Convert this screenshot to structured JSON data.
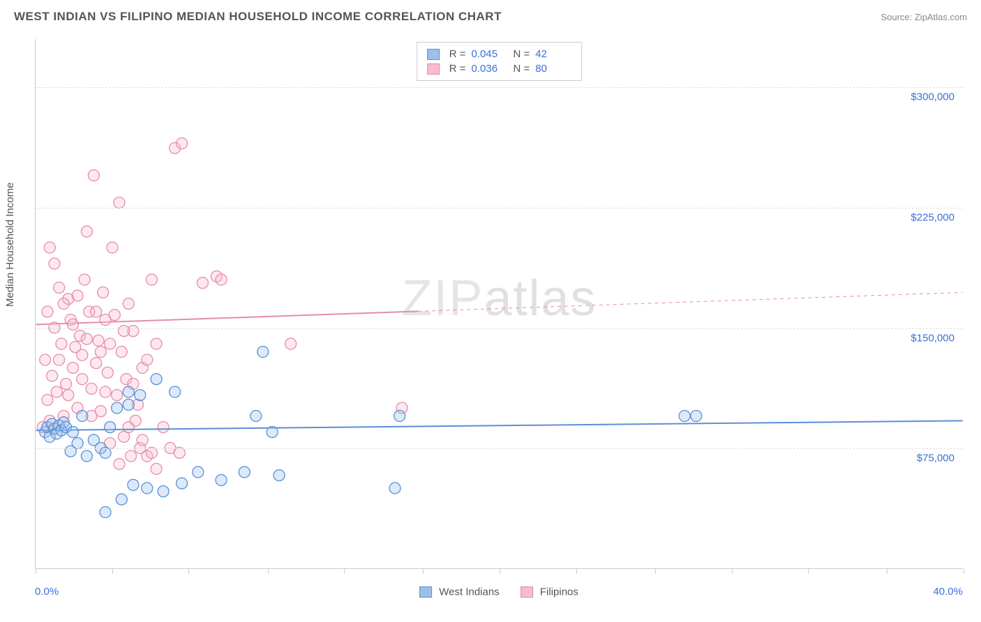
{
  "title": "WEST INDIAN VS FILIPINO MEDIAN HOUSEHOLD INCOME CORRELATION CHART",
  "source": "Source: ZipAtlas.com",
  "watermark_bold": "ZIP",
  "watermark_light": "atlas",
  "ylabel": "Median Household Income",
  "chart": {
    "type": "scatter",
    "xlim": [
      0,
      40
    ],
    "ylim": [
      0,
      330000
    ],
    "xticks_pct": [
      0,
      3.3,
      6.6,
      10,
      13.3,
      16.7,
      20,
      23.3,
      26.7,
      30,
      33.3,
      36.7,
      40
    ],
    "yticks": [
      {
        "value": 75000,
        "label": "$75,000"
      },
      {
        "value": 150000,
        "label": "$150,000"
      },
      {
        "value": 225000,
        "label": "$225,000"
      },
      {
        "value": 300000,
        "label": "$300,000"
      }
    ],
    "xlabel_min": "0.0%",
    "xlabel_max": "40.0%",
    "grid_color": "#e0e0e0",
    "axis_color": "#cccccc",
    "tick_label_color": "#3b6fd6",
    "background_color": "#ffffff",
    "marker_radius": 8,
    "marker_fill_opacity": 0.35,
    "marker_stroke_width": 1.3,
    "trend_line_width": 2
  },
  "series": {
    "west_indians": {
      "label": "West Indians",
      "color_stroke": "#5a8fd8",
      "color_fill": "#9cc0ea",
      "R": "0.045",
      "N": "42",
      "trend": {
        "y_at_x0": 86000,
        "y_at_x40": 92000
      },
      "points": [
        [
          0.4,
          85000
        ],
        [
          0.5,
          88000
        ],
        [
          0.6,
          82000
        ],
        [
          0.7,
          90000
        ],
        [
          0.8,
          87000
        ],
        [
          0.9,
          84000
        ],
        [
          1.0,
          89000
        ],
        [
          1.1,
          86000
        ],
        [
          1.2,
          91000
        ],
        [
          1.3,
          88000
        ],
        [
          1.5,
          73000
        ],
        [
          1.6,
          85000
        ],
        [
          1.8,
          78000
        ],
        [
          2.0,
          95000
        ],
        [
          2.2,
          70000
        ],
        [
          2.5,
          80000
        ],
        [
          2.8,
          75000
        ],
        [
          3.0,
          72000
        ],
        [
          3.2,
          88000
        ],
        [
          3.5,
          100000
        ],
        [
          3.7,
          43000
        ],
        [
          4.0,
          110000
        ],
        [
          4.2,
          52000
        ],
        [
          4.5,
          108000
        ],
        [
          4.8,
          50000
        ],
        [
          5.2,
          118000
        ],
        [
          5.5,
          48000
        ],
        [
          6.0,
          110000
        ],
        [
          6.3,
          53000
        ],
        [
          7.0,
          60000
        ],
        [
          8.0,
          55000
        ],
        [
          9.0,
          60000
        ],
        [
          9.5,
          95000
        ],
        [
          9.8,
          135000
        ],
        [
          10.2,
          85000
        ],
        [
          10.5,
          58000
        ],
        [
          15.5,
          50000
        ],
        [
          15.7,
          95000
        ],
        [
          28.0,
          95000
        ],
        [
          28.5,
          95000
        ],
        [
          3.0,
          35000
        ],
        [
          4.0,
          102000
        ]
      ]
    },
    "filipinos": {
      "label": "Filipinos",
      "color_stroke": "#e78ca8",
      "color_fill": "#f5bcce",
      "R": "0.036",
      "N": "80",
      "trend": {
        "y_at_x0": 152000,
        "y_at_x40": 172000
      },
      "points": [
        [
          0.3,
          88000
        ],
        [
          0.4,
          130000
        ],
        [
          0.5,
          160000
        ],
        [
          0.6,
          200000
        ],
        [
          0.7,
          120000
        ],
        [
          0.8,
          150000
        ],
        [
          0.9,
          110000
        ],
        [
          1.0,
          175000
        ],
        [
          1.1,
          140000
        ],
        [
          1.2,
          95000
        ],
        [
          1.3,
          115000
        ],
        [
          1.4,
          168000
        ],
        [
          1.5,
          155000
        ],
        [
          1.6,
          125000
        ],
        [
          1.7,
          138000
        ],
        [
          1.8,
          100000
        ],
        [
          1.9,
          145000
        ],
        [
          2.0,
          133000
        ],
        [
          2.1,
          180000
        ],
        [
          2.2,
          210000
        ],
        [
          2.3,
          160000
        ],
        [
          2.4,
          112000
        ],
        [
          2.5,
          245000
        ],
        [
          2.6,
          128000
        ],
        [
          2.7,
          142000
        ],
        [
          2.8,
          98000
        ],
        [
          2.9,
          172000
        ],
        [
          3.0,
          155000
        ],
        [
          3.1,
          122000
        ],
        [
          3.2,
          140000
        ],
        [
          3.3,
          200000
        ],
        [
          3.5,
          108000
        ],
        [
          3.6,
          228000
        ],
        [
          3.7,
          135000
        ],
        [
          3.8,
          82000
        ],
        [
          3.9,
          118000
        ],
        [
          4.0,
          165000
        ],
        [
          4.1,
          70000
        ],
        [
          4.2,
          148000
        ],
        [
          4.3,
          92000
        ],
        [
          4.5,
          75000
        ],
        [
          4.6,
          125000
        ],
        [
          4.8,
          70000
        ],
        [
          5.0,
          180000
        ],
        [
          5.2,
          62000
        ],
        [
          5.5,
          88000
        ],
        [
          5.8,
          75000
        ],
        [
          6.0,
          262000
        ],
        [
          6.2,
          72000
        ],
        [
          6.3,
          265000
        ],
        [
          7.2,
          178000
        ],
        [
          7.8,
          182000
        ],
        [
          8.0,
          180000
        ],
        [
          11.0,
          140000
        ],
        [
          15.8,
          100000
        ],
        [
          0.5,
          105000
        ],
        [
          0.6,
          92000
        ],
        [
          0.8,
          190000
        ],
        [
          1.0,
          130000
        ],
        [
          1.2,
          165000
        ],
        [
          1.4,
          108000
        ],
        [
          1.6,
          152000
        ],
        [
          1.8,
          170000
        ],
        [
          2.0,
          118000
        ],
        [
          2.2,
          143000
        ],
        [
          2.4,
          95000
        ],
        [
          2.6,
          160000
        ],
        [
          2.8,
          135000
        ],
        [
          3.0,
          110000
        ],
        [
          3.2,
          78000
        ],
        [
          3.4,
          158000
        ],
        [
          3.6,
          65000
        ],
        [
          3.8,
          148000
        ],
        [
          4.0,
          88000
        ],
        [
          4.2,
          115000
        ],
        [
          4.4,
          102000
        ],
        [
          4.6,
          80000
        ],
        [
          4.8,
          130000
        ],
        [
          5.0,
          72000
        ],
        [
          5.2,
          140000
        ]
      ]
    }
  },
  "stats_labels": {
    "R_prefix": "R =",
    "N_prefix": "N ="
  }
}
